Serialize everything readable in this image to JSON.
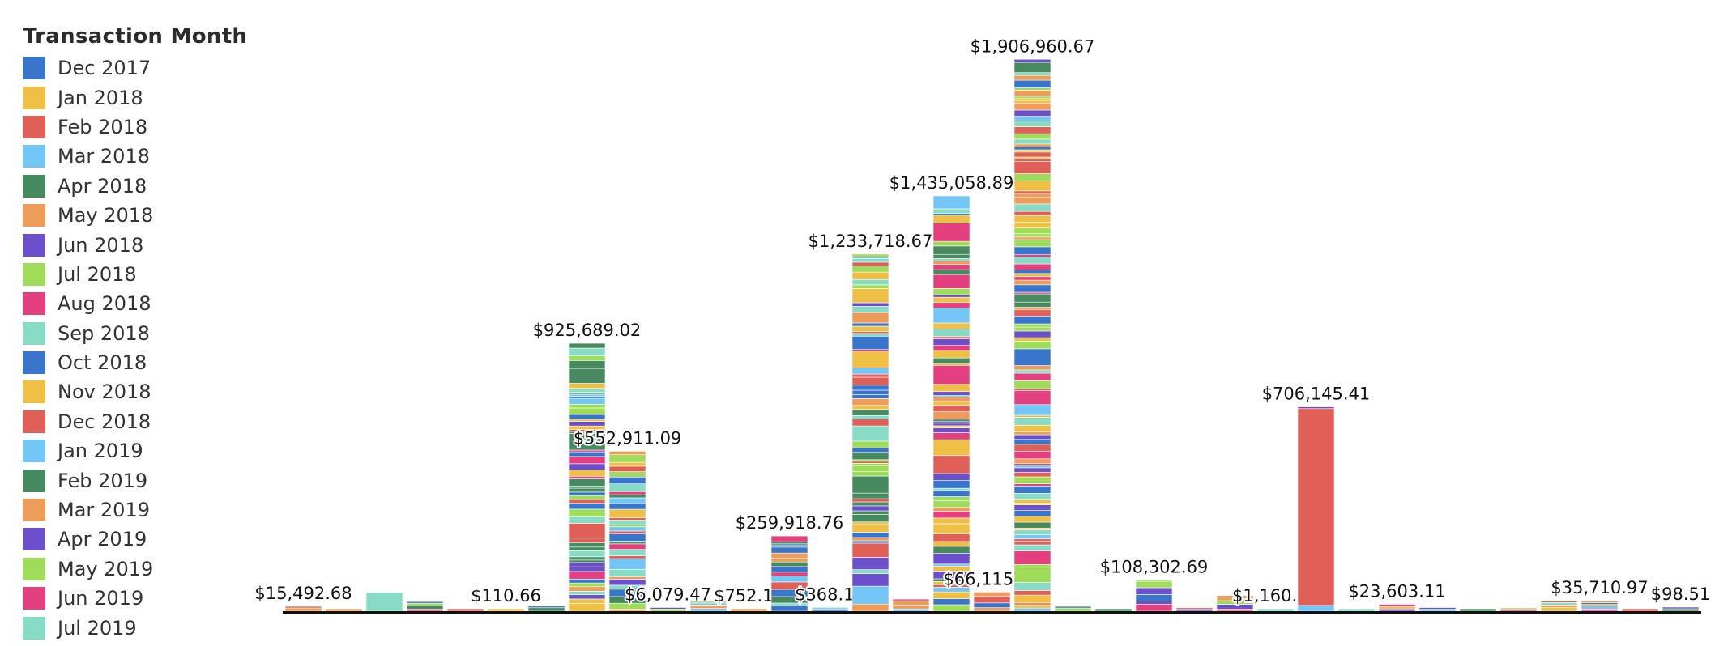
{
  "chart_data": {
    "type": "bar",
    "stacked": true,
    "legend": {
      "title": "Transaction Month",
      "placement": "left",
      "entries": [
        "Dec 2017",
        "Jan 2018",
        "Feb 2018",
        "Mar 2018",
        "Apr 2018",
        "May 2018",
        "Jun 2018",
        "Jul 2018",
        "Aug 2018",
        "Sep 2018",
        "Oct 2018",
        "Nov 2018",
        "Dec 2018",
        "Jan 2019",
        "Feb 2019",
        "Mar 2019",
        "Apr 2019",
        "May 2019",
        "Jun 2019",
        "Jul 2019"
      ]
    },
    "palette": [
      "#3a75cc",
      "#efc045",
      "#e06058",
      "#74c6f7",
      "#478a5f",
      "#ee9c5a",
      "#6b4fcb",
      "#9edc5a",
      "#e4407f",
      "#88dcc5"
    ],
    "grid": false,
    "ylim": [
      0,
      2000000
    ],
    "bars": [
      {
        "value": 15492.68,
        "label": "$15,492.68"
      },
      {
        "value": 8000,
        "label": null
      },
      {
        "value": 65000,
        "label": null,
        "segments": [
          {
            "series": "Sep 2018",
            "value": 65000
          }
        ]
      },
      {
        "value": 31000,
        "label": null
      },
      {
        "value": 6000,
        "label": null
      },
      {
        "value": 110.66,
        "label": "$110.66"
      },
      {
        "value": 12000,
        "label": null
      },
      {
        "value": 925689.02,
        "label": "$925,689.02"
      },
      {
        "value": 552911.09,
        "label": "$552,911.09"
      },
      {
        "value": 6079.47,
        "label": "$6,079.47"
      },
      {
        "value": 30000,
        "label": null
      },
      {
        "value": 752.19,
        "label": "$752.19"
      },
      {
        "value": 259918.76,
        "label": "$259,918.76"
      },
      {
        "value": 368.1,
        "label": "$368.10"
      },
      {
        "value": 1233718.67,
        "label": "$1,233,718.67"
      },
      {
        "value": 38000,
        "label": null
      },
      {
        "value": 1435058.89,
        "label": "$1,435,058.89"
      },
      {
        "value": 66115.68,
        "label": "$66,115.68"
      },
      {
        "value": 1906960.67,
        "label": "$1,906,960.67"
      },
      {
        "value": 15000,
        "label": null
      },
      {
        "value": 6000,
        "label": null
      },
      {
        "value": 108302.69,
        "label": "$108,302.69"
      },
      {
        "value": 6000,
        "label": null
      },
      {
        "value": 50000,
        "label": null
      },
      {
        "value": 1160.87,
        "label": "$1,160.87"
      },
      {
        "value": 706145.41,
        "label": "$706,145.41",
        "segments": [
          {
            "series": "Jan 2019",
            "value": 20000
          },
          {
            "series": "Dec 2018",
            "value": 680000
          },
          {
            "series": "Apr 2019",
            "value": 6145.41
          }
        ]
      },
      {
        "value": 6000,
        "label": null
      },
      {
        "value": 23603.11,
        "label": "$23,603.11"
      },
      {
        "value": 6000,
        "label": null
      },
      {
        "value": 6000,
        "label": null
      },
      {
        "value": 6000,
        "label": null
      },
      {
        "value": 35000,
        "label": null
      },
      {
        "value": 35710.97,
        "label": "$35,710.97"
      },
      {
        "value": 6000,
        "label": null
      },
      {
        "value": 98.51,
        "label": "$98.51"
      }
    ]
  }
}
